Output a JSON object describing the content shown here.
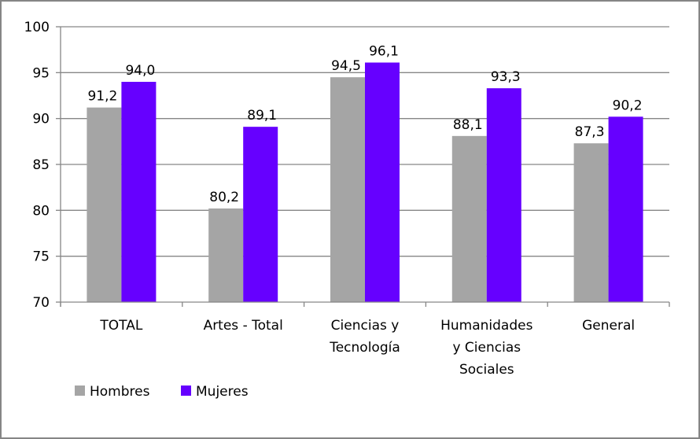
{
  "chart_data": {
    "type": "bar",
    "title": "",
    "xlabel": "",
    "ylabel": "",
    "ylim": [
      70,
      100
    ],
    "yticks": [
      70,
      75,
      80,
      85,
      90,
      95,
      100
    ],
    "grid": true,
    "legend_position": "bottom-left",
    "categories": [
      [
        "TOTAL"
      ],
      [
        "Artes - Total"
      ],
      [
        "Ciencias y",
        "Tecnología"
      ],
      [
        "Humanidades",
        "y Ciencias",
        "Sociales"
      ],
      [
        "General"
      ]
    ],
    "category_names": [
      "TOTAL",
      "Artes - Total",
      "Ciencias y Tecnología",
      "Humanidades y Ciencias Sociales",
      "General"
    ],
    "series": [
      {
        "name": "Hombres",
        "color": "#A5A5A5",
        "values": [
          91.2,
          80.2,
          94.5,
          88.1,
          87.3
        ],
        "labels": [
          "91,2",
          "80,2",
          "94,5",
          "88,1",
          "87,3"
        ]
      },
      {
        "name": "Mujeres",
        "color": "#6600FF",
        "values": [
          94.0,
          89.1,
          96.1,
          93.3,
          90.2
        ],
        "labels": [
          "94,0",
          "89,1",
          "96,1",
          "93,3",
          "90,2"
        ]
      }
    ]
  },
  "legend": {
    "items": [
      {
        "label": "Hombres",
        "color": "#A5A5A5"
      },
      {
        "label": "Mujeres",
        "color": "#6600FF"
      }
    ]
  }
}
